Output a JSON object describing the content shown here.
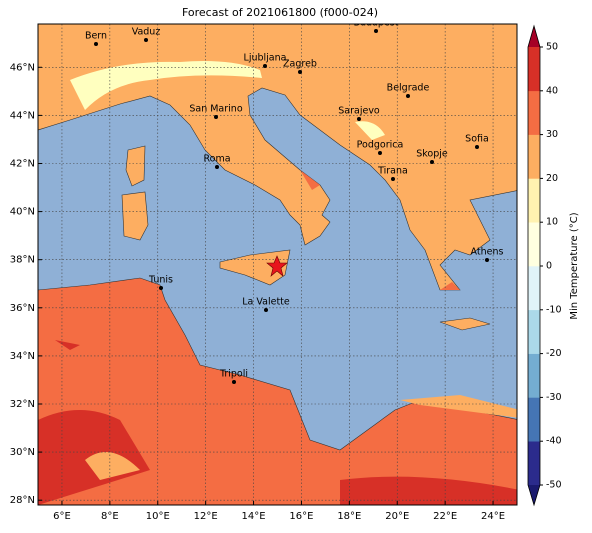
{
  "title": "Forecast of 2021061800 (f000-024)",
  "map": {
    "xlim": [
      5,
      25
    ],
    "ylim": [
      27.8,
      47.8
    ],
    "grid": true,
    "xticks": [
      {
        "value": 6,
        "label": "6°E"
      },
      {
        "value": 8,
        "label": "8°E"
      },
      {
        "value": 10,
        "label": "10°E"
      },
      {
        "value": 12,
        "label": "12°E"
      },
      {
        "value": 14,
        "label": "14°E"
      },
      {
        "value": 16,
        "label": "16°E"
      },
      {
        "value": 18,
        "label": "18°E"
      },
      {
        "value": 20,
        "label": "20°E"
      },
      {
        "value": 22,
        "label": "22°E"
      },
      {
        "value": 24,
        "label": "24°E"
      }
    ],
    "yticks": [
      {
        "value": 28,
        "label": "28°N"
      },
      {
        "value": 30,
        "label": "30°N"
      },
      {
        "value": 32,
        "label": "32°N"
      },
      {
        "value": 34,
        "label": "34°N"
      },
      {
        "value": 36,
        "label": "36°N"
      },
      {
        "value": 38,
        "label": "38°N"
      },
      {
        "value": 40,
        "label": "40°N"
      },
      {
        "value": 42,
        "label": "42°N"
      },
      {
        "value": 44,
        "label": "44°N"
      },
      {
        "value": 46,
        "label": "46°N"
      }
    ],
    "cities": [
      "Bern",
      "Vaduz",
      "Budapest",
      "Ljubljana",
      "Zagreb",
      "Belgrade",
      "San Marino",
      "Sarajevo",
      "Sofia",
      "Podgorica",
      "Skopje",
      "Roma",
      "Tirana",
      "Athens",
      "Tunis",
      "La Valette",
      "Tripoli"
    ]
  },
  "colorbar": {
    "label": "Min Temperature (°C)",
    "lim": [
      -50,
      50
    ],
    "ticks": [
      -50,
      -40,
      -30,
      -20,
      -10,
      0,
      10,
      20,
      30,
      40,
      50
    ],
    "colors": [
      "#2b2b8c",
      "#4575b4",
      "#74add1",
      "#abd9e9",
      "#e0f3f8",
      "#ffffe0",
      "#fff2b0",
      "#fdae61",
      "#f46d43",
      "#d73027"
    ],
    "under_color": "#1a1a6e",
    "over_color": "#a50026"
  }
}
